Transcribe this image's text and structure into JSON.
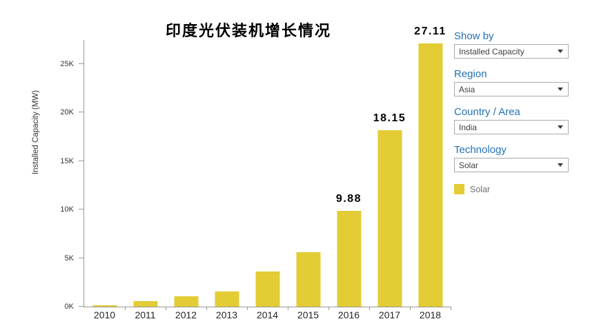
{
  "chart_data": {
    "type": "bar",
    "title": "印度光伏装机增长情况",
    "xlabel": "",
    "ylabel": "Installed Capacity (MW)",
    "categories": [
      "2010",
      "2011",
      "2012",
      "2013",
      "2014",
      "2015",
      "2016",
      "2017",
      "2018"
    ],
    "values_mw": [
      100,
      560,
      1050,
      1550,
      3650,
      5600,
      9880,
      18150,
      27110
    ],
    "bar_labels": [
      "",
      "",
      "",
      "",
      "",
      "",
      "9.88",
      "18.15",
      "27.11"
    ],
    "ytick_labels": [
      "0K",
      "5K",
      "10K",
      "15K",
      "20K",
      "25K"
    ],
    "ytick_values_k": [
      0,
      5,
      10,
      15,
      20,
      25
    ],
    "ylim_mw": [
      0,
      27500
    ],
    "grid": false,
    "bar_color": "#e3cc34",
    "legend": {
      "label": "Solar",
      "color": "#e3cc34",
      "position": "right-panel"
    }
  },
  "sidebar": {
    "filters": [
      {
        "label": "Show by",
        "value": "Installed Capacity"
      },
      {
        "label": "Region",
        "value": "Asia"
      },
      {
        "label": "Country / Area",
        "value": "India"
      },
      {
        "label": "Technology",
        "value": "Solar"
      }
    ]
  },
  "colors": {
    "bar_yellow": "#e3cc34",
    "filter_label_blue": "#2272b5",
    "axis_line_gray": "#969696",
    "text_dark": "#333333",
    "legend_text_gray": "#707070"
  }
}
